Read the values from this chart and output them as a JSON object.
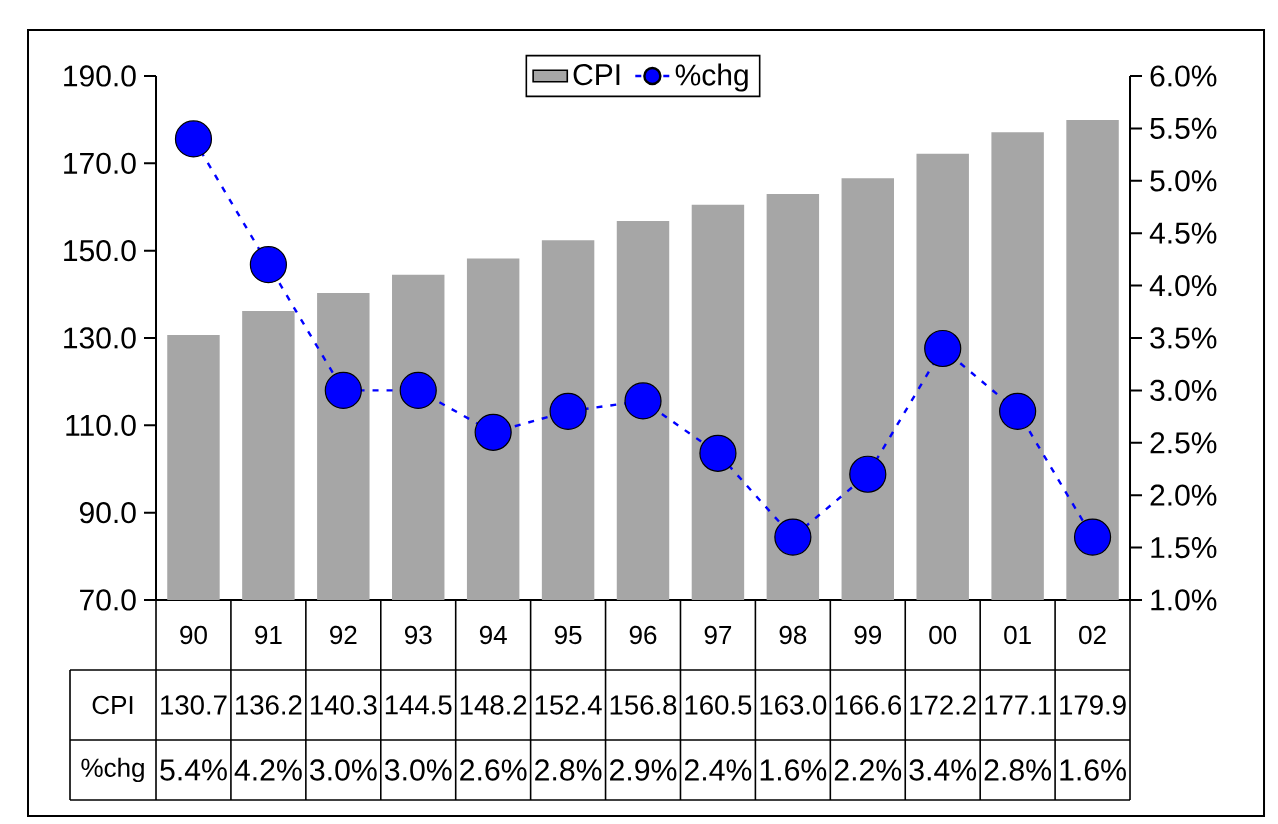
{
  "chart_data": {
    "type": "bar",
    "categories": [
      "90",
      "91",
      "92",
      "93",
      "94",
      "95",
      "96",
      "97",
      "98",
      "99",
      "00",
      "01",
      "02"
    ],
    "series": [
      {
        "name": "CPI",
        "color": "#a6a6a6",
        "values": [
          130.7,
          136.2,
          140.3,
          144.5,
          148.2,
          152.4,
          156.8,
          160.5,
          163.0,
          166.6,
          172.2,
          177.1,
          179.9
        ],
        "value_labels": [
          "130.7",
          "136.2",
          "140.3",
          "144.5",
          "148.2",
          "152.4",
          "156.8",
          "160.5",
          "163.0",
          "166.6",
          "172.2",
          "177.1",
          "179.9"
        ]
      },
      {
        "name": "%chg",
        "type": "line",
        "axis": "y2",
        "color": "#0000ff",
        "values": [
          5.4,
          4.2,
          3.0,
          3.0,
          2.6,
          2.8,
          2.9,
          2.4,
          1.6,
          2.2,
          3.4,
          2.8,
          1.6
        ],
        "value_labels": [
          "5.4%",
          "4.2%",
          "3.0%",
          "3.0%",
          "2.6%",
          "2.8%",
          "2.9%",
          "2.4%",
          "1.6%",
          "2.2%",
          "3.4%",
          "2.8%",
          "1.6%"
        ]
      }
    ],
    "ylim": [
      70,
      190
    ],
    "yticks": [
      {
        "value": 70,
        "label": "70.0"
      },
      {
        "value": 90,
        "label": "90.0"
      },
      {
        "value": 110,
        "label": "110.0"
      },
      {
        "value": 130,
        "label": "130.0"
      },
      {
        "value": 150,
        "label": "150.0"
      },
      {
        "value": 170,
        "label": "170.0"
      },
      {
        "value": 190,
        "label": "190.0"
      }
    ],
    "y2lim": [
      1.0,
      6.0
    ],
    "y2ticks": [
      {
        "value": 1.0,
        "label": "1.0%"
      },
      {
        "value": 1.5,
        "label": "1.5%"
      },
      {
        "value": 2.0,
        "label": "2.0%"
      },
      {
        "value": 2.5,
        "label": "2.5%"
      },
      {
        "value": 3.0,
        "label": "3.0%"
      },
      {
        "value": 3.5,
        "label": "3.5%"
      },
      {
        "value": 4.0,
        "label": "4.0%"
      },
      {
        "value": 4.5,
        "label": "4.5%"
      },
      {
        "value": 5.0,
        "label": "5.0%"
      },
      {
        "value": 5.5,
        "label": "5.5%"
      },
      {
        "value": 6.0,
        "label": "6.0%"
      }
    ],
    "legend": "top",
    "marker": "circle",
    "line_style": "dashed"
  }
}
